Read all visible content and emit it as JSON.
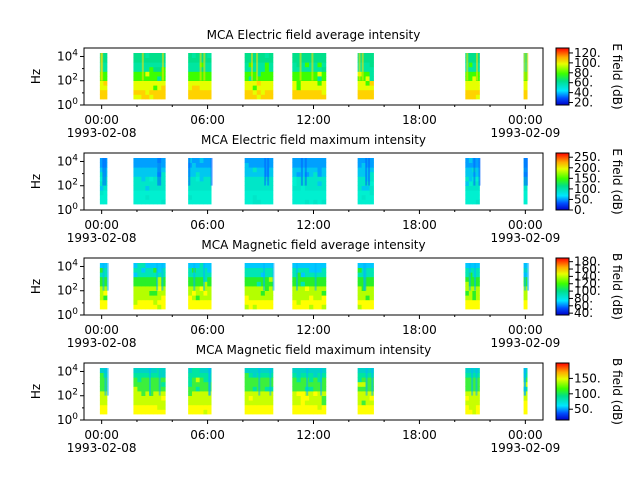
{
  "chart_data": [
    {
      "type": "heatmap",
      "title": "MCA  Electric field average intensity",
      "ylabel": "Hz",
      "yscale": "log",
      "ylim": [
        1,
        50000
      ],
      "yticks": [
        "10^0",
        "10^2",
        "10^4"
      ],
      "xticks": [
        {
          "time": "00:00",
          "date": "1993-02-08"
        },
        {
          "time": "06:00",
          "date": ""
        },
        {
          "time": "12:00",
          "date": ""
        },
        {
          "time": "18:00",
          "date": ""
        },
        {
          "time": "00:00",
          "date": "1993-02-09"
        }
      ],
      "xlim_hours": [
        -1,
        25
      ],
      "colorbar": {
        "label": "E field (dB)",
        "range": [
          15,
          130
        ],
        "ticks": [
          "20.",
          "40.",
          "60.",
          "80.",
          "100.",
          "120."
        ]
      },
      "segments_hours": [
        [
          -0.1,
          0.3
        ],
        [
          1.8,
          3.6
        ],
        [
          4.9,
          6.2
        ],
        [
          8.1,
          9.7
        ],
        [
          10.8,
          12.7
        ],
        [
          14.5,
          15.4
        ],
        [
          20.6,
          21.4
        ],
        [
          23.9,
          24.1
        ]
      ],
      "palette": "avg"
    },
    {
      "type": "heatmap",
      "title": "MCA  Electric field maximum intensity",
      "ylabel": "Hz",
      "yscale": "log",
      "ylim": [
        1,
        50000
      ],
      "yticks": [
        "10^0",
        "10^2",
        "10^4"
      ],
      "xticks": [
        {
          "time": "00:00",
          "date": "1993-02-08"
        },
        {
          "time": "06:00",
          "date": ""
        },
        {
          "time": "12:00",
          "date": ""
        },
        {
          "time": "18:00",
          "date": ""
        },
        {
          "time": "00:00",
          "date": "1993-02-09"
        }
      ],
      "xlim_hours": [
        -1,
        25
      ],
      "colorbar": {
        "label": "E field (dB)",
        "range": [
          0,
          270
        ],
        "ticks": [
          "0.",
          "50.",
          "100.",
          "150.",
          "200.",
          "250."
        ]
      },
      "segments_hours": [
        [
          -0.1,
          0.3
        ],
        [
          1.8,
          3.6
        ],
        [
          4.9,
          6.2
        ],
        [
          8.1,
          9.7
        ],
        [
          10.8,
          12.7
        ],
        [
          14.5,
          15.4
        ],
        [
          20.6,
          21.4
        ],
        [
          23.9,
          24.1
        ]
      ],
      "palette": "emax"
    },
    {
      "type": "heatmap",
      "title": "MCA  Magnetic field average intensity",
      "ylabel": "Hz",
      "yscale": "log",
      "ylim": [
        1,
        50000
      ],
      "yticks": [
        "10^0",
        "10^2",
        "10^4"
      ],
      "xticks": [
        {
          "time": "00:00",
          "date": "1993-02-08"
        },
        {
          "time": "06:00",
          "date": ""
        },
        {
          "time": "12:00",
          "date": ""
        },
        {
          "time": "18:00",
          "date": ""
        },
        {
          "time": "00:00",
          "date": "1993-02-09"
        }
      ],
      "xlim_hours": [
        -1,
        25
      ],
      "colorbar": {
        "label": "B field (dB)",
        "range": [
          35,
          190
        ],
        "ticks": [
          "40.",
          "60.",
          "80.",
          "100.",
          "120.",
          "140.",
          "160.",
          "180."
        ]
      },
      "segments_hours": [
        [
          -0.1,
          0.3
        ],
        [
          1.8,
          3.6
        ],
        [
          4.9,
          6.2
        ],
        [
          8.1,
          9.7
        ],
        [
          10.8,
          12.7
        ],
        [
          14.5,
          15.4
        ],
        [
          20.6,
          21.4
        ],
        [
          23.9,
          24.1
        ]
      ],
      "palette": "bavg"
    },
    {
      "type": "heatmap",
      "title": "MCA  Magnetic field maximum intensity",
      "ylabel": "Hz",
      "yscale": "log",
      "ylim": [
        1,
        50000
      ],
      "yticks": [
        "10^0",
        "10^2",
        "10^4"
      ],
      "xticks": [
        {
          "time": "00:00",
          "date": "1993-02-08"
        },
        {
          "time": "06:00",
          "date": ""
        },
        {
          "time": "12:00",
          "date": ""
        },
        {
          "time": "18:00",
          "date": ""
        },
        {
          "time": "00:00",
          "date": "1993-02-09"
        }
      ],
      "xlim_hours": [
        -1,
        25
      ],
      "colorbar": {
        "label": "B field (dB)",
        "range": [
          15,
          200
        ],
        "ticks": [
          "50.",
          "100.",
          "150."
        ]
      },
      "segments_hours": [
        [
          -0.1,
          0.3
        ],
        [
          1.8,
          3.6
        ],
        [
          4.9,
          6.2
        ],
        [
          8.1,
          9.7
        ],
        [
          10.8,
          12.7
        ],
        [
          14.5,
          15.4
        ],
        [
          20.6,
          21.4
        ],
        [
          23.9,
          24.1
        ]
      ],
      "palette": "bmax"
    }
  ]
}
